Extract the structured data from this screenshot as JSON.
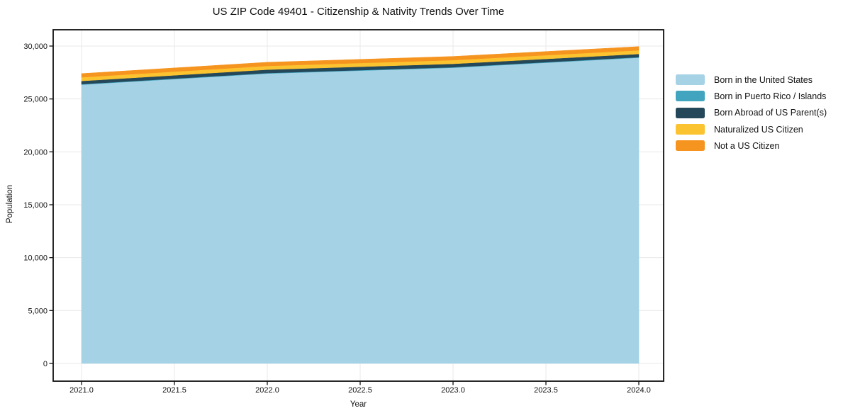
{
  "page": {
    "title": "US ZIP Code 49401 - Citizenship & Nativity Trends Over Time"
  },
  "chart_data": {
    "type": "area",
    "stacked": true,
    "title": "US ZIP Code 49401 - Citizenship & Nativity Trends Over Time",
    "xlabel": "Year",
    "ylabel": "Population",
    "x": [
      2021,
      2022,
      2023,
      2024
    ],
    "xlim": [
      2021,
      2024
    ],
    "ylim": [
      0,
      30000
    ],
    "grid": true,
    "legend_position": "right",
    "x_tick_values": [
      2021.0,
      2021.5,
      2022.0,
      2022.5,
      2023.0,
      2023.5,
      2024.0
    ],
    "x_tick_labels": [
      "2021.0",
      "2021.5",
      "2022.0",
      "2022.5",
      "2023.0",
      "2023.5",
      "2024.0"
    ],
    "y_tick_values": [
      0,
      5000,
      10000,
      15000,
      20000,
      25000,
      30000
    ],
    "y_tick_labels": [
      "0",
      "5,000",
      "10,000",
      "15,000",
      "20,000",
      "25,000",
      "30,000"
    ],
    "series": [
      {
        "name": "Born in the United States",
        "color": "#a6d2e6",
        "values": [
          26350,
          27400,
          27950,
          28900
        ]
      },
      {
        "name": "Born in Puerto Rico / Islands",
        "color": "#41a5c0",
        "values": [
          50,
          50,
          50,
          50
        ]
      },
      {
        "name": "Born Abroad of US Parent(s)",
        "color": "#24485a",
        "values": [
          300,
          320,
          320,
          300
        ]
      },
      {
        "name": "Naturalized US Citizen",
        "color": "#fcc330",
        "values": [
          350,
          350,
          350,
          350
        ]
      },
      {
        "name": "Not a US Citizen",
        "color": "#f69420",
        "values": [
          350,
          350,
          350,
          350
        ]
      }
    ],
    "colors": {
      "grid": "#e8e8e8",
      "spine": "#111111",
      "background": "#ffffff"
    }
  }
}
